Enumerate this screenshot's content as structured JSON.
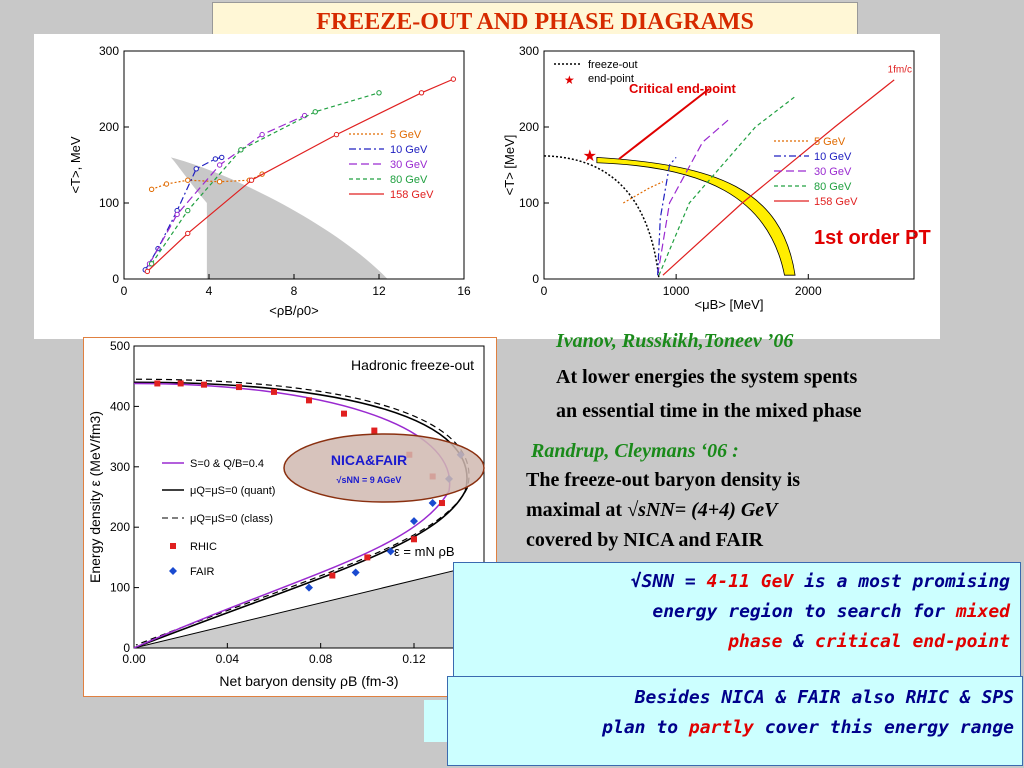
{
  "title": "FREEZE-OUT AND PHASE DIAGRAMS",
  "colors": {
    "title": "#d62a00",
    "s5": "#e06a00",
    "s10": "#2020c0",
    "s30": "#9a2ad0",
    "s80": "#20a040",
    "s158": "#e02020",
    "ref": "#1a8a1a",
    "box_text": "#00008b",
    "highlight": "#e00000"
  },
  "chart_data": [
    {
      "type": "line",
      "xlabel": "<ρB/ρ0>",
      "ylabel": "<T>, MeV",
      "xlim": [
        0,
        16
      ],
      "ylim": [
        0,
        300
      ],
      "xticks": [
        "0",
        "4",
        "8",
        "12",
        "16"
      ],
      "yticks": [
        "0",
        "100",
        "200",
        "300"
      ],
      "legend": [
        "5 GeV",
        "10 GeV",
        "30 GeV",
        "80 GeV",
        "158 GeV"
      ],
      "series": [
        {
          "name": "5 GeV",
          "x": [
            1.3,
            2,
            3,
            4.5,
            5.9,
            6.5
          ],
          "y": [
            118,
            125,
            130,
            128,
            130,
            138
          ]
        },
        {
          "name": "10 GeV",
          "x": [
            1,
            1.6,
            2.5,
            3.4,
            4.3,
            4.6
          ],
          "y": [
            12,
            40,
            90,
            145,
            158,
            160
          ]
        },
        {
          "name": "30 GeV",
          "x": [
            1.2,
            2.5,
            4.5,
            6.5,
            8.5
          ],
          "y": [
            20,
            85,
            150,
            190,
            215
          ]
        },
        {
          "name": "80 GeV",
          "x": [
            1.3,
            3,
            5.5,
            9,
            12
          ],
          "y": [
            20,
            90,
            170,
            220,
            245
          ]
        },
        {
          "name": "158 GeV",
          "x": [
            1.1,
            3,
            6,
            10,
            14,
            15.5
          ],
          "y": [
            10,
            60,
            130,
            190,
            245,
            263
          ]
        }
      ]
    },
    {
      "type": "line",
      "xlabel": "<μB> [MeV]",
      "ylabel": "<T> [MeV]",
      "xlim": [
        0,
        2800
      ],
      "ylim": [
        0,
        300
      ],
      "xticks": [
        "0",
        "1000",
        "2000"
      ],
      "yticks": [
        "0",
        "100",
        "200",
        "300"
      ],
      "legend": [
        "freeze-out",
        "end-point",
        "5 GeV",
        "10 GeV",
        "30 GeV",
        "80 GeV",
        "158 GeV"
      ],
      "annotations": [
        "Critical end-point",
        "1fm/c",
        "1st order PT"
      ]
    },
    {
      "type": "scatter",
      "title": "Hadronic freeze-out",
      "xlabel": "Net baryon density ρB (fm-3)",
      "ylabel": "Energy density ε (MeV/fm3)",
      "xlim": [
        0,
        0.15
      ],
      "ylim": [
        0,
        500
      ],
      "xticks": [
        "0.00",
        "0.04",
        "0.08",
        "0.12"
      ],
      "yticks": [
        "0",
        "100",
        "200",
        "300",
        "400",
        "500"
      ],
      "legend": [
        "S=0 & Q/B=0.4",
        "μQ=μS=0 (quant)",
        "μQ=μS=0 (class)",
        "RHIC",
        "FAIR"
      ],
      "line_label": "ε = mN ρB",
      "ellipse_label": "NICA&FAIR",
      "ellipse_sub": "√sNN = 9 AGeV"
    }
  ],
  "refs": {
    "ref1": "Ivanov, Russkikh,Toneev ’06",
    "text1a": "At lower energies the system spents",
    "text1b": "an essential time in the mixed phase",
    "ref2": "Randrup, Cleymans ‘06 :",
    "text2a": "The freeze-out baryon density is",
    "text2b_pre": "maximal at",
    "text2b_math": "√sNN= (4+4) GeV",
    "text2c": "covered by NICA and FAIR"
  },
  "box1": {
    "l1a": "√SNN = ",
    "l1b": "4-11 GeV",
    "l1c": " is a most promising",
    "l2a": "energy region to search for ",
    "l2b": "mixed",
    "l3a": "phase",
    "l3b": " & ",
    "l3c": "critical end-point"
  },
  "box2": {
    "l1": "Besides NICA & FAIR also RHIC & SPS",
    "l2a": "plan to ",
    "l2b": "partly",
    "l2c": " cover this energy range"
  }
}
